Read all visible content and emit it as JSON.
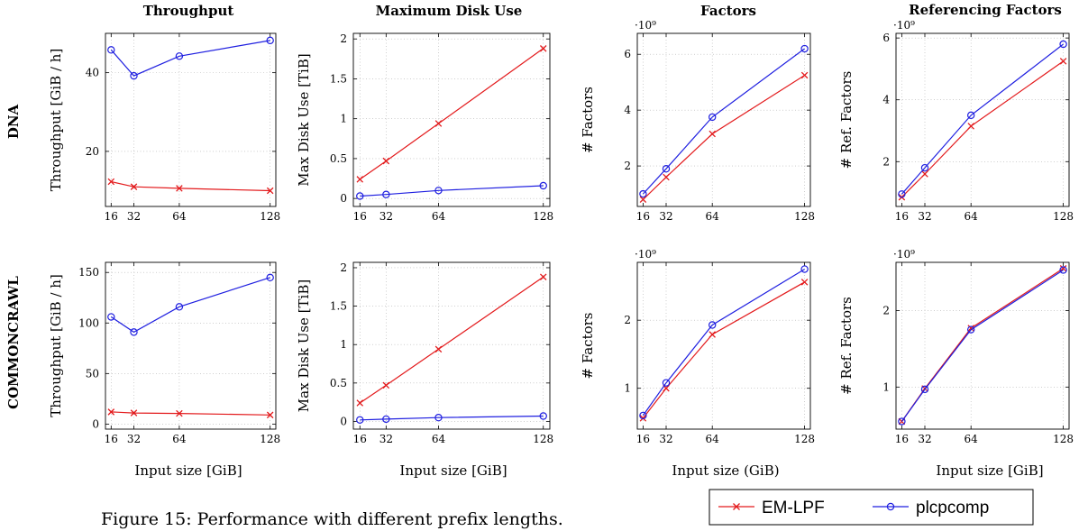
{
  "figure": {
    "caption": "Figure 15: Performance with different prefix lengths.",
    "row_labels": [
      "DNA",
      "COMMONCRAWL"
    ],
    "column_titles": [
      "Throughput",
      "Maximum Disk Use",
      "Factors",
      "Referencing Factors"
    ],
    "x_axis_labels": [
      "Input size [GiB]",
      "Input size [GiB]",
      "Input size (GiB)",
      "Input size [GiB]"
    ],
    "legend": [
      {
        "label": "EM-LPF",
        "color": "#e31a1c",
        "marker": "x"
      },
      {
        "label": "plcpcomp",
        "color": "#1f1fe0",
        "marker": "o"
      }
    ]
  },
  "chart_data": [
    {
      "id": "dna-throughput",
      "type": "line",
      "title": "Throughput",
      "ylabel": "Throughput [GiB / h]",
      "xlabel": "",
      "x": [
        16,
        32,
        64,
        128
      ],
      "xlim": [
        12,
        132
      ],
      "ylim": [
        6,
        50
      ],
      "yticks": [
        20,
        40
      ],
      "ytick_labels": [
        "20",
        "40"
      ],
      "exponent": "",
      "grid": true,
      "series": [
        {
          "name": "EM-LPF",
          "values": [
            12.3,
            11,
            10.6,
            10
          ]
        },
        {
          "name": "plcpcomp",
          "values": [
            45.8,
            39.2,
            44.2,
            48.2
          ]
        }
      ]
    },
    {
      "id": "dna-disk",
      "type": "line",
      "title": "Maximum Disk Use",
      "ylabel": "Max Disk Use [TiB]",
      "xlabel": "",
      "x": [
        16,
        32,
        64,
        128
      ],
      "xlim": [
        12,
        132
      ],
      "ylim": [
        -0.1,
        2.07
      ],
      "yticks": [
        0,
        0.5,
        1,
        1.5,
        2
      ],
      "ytick_labels": [
        "0",
        "0.5",
        "1",
        "1.5",
        "2"
      ],
      "exponent": "",
      "grid": true,
      "series": [
        {
          "name": "EM-LPF",
          "values": [
            0.24,
            0.47,
            0.94,
            1.88
          ]
        },
        {
          "name": "plcpcomp",
          "values": [
            0.03,
            0.05,
            0.1,
            0.16
          ]
        }
      ]
    },
    {
      "id": "dna-factors",
      "type": "line",
      "title": "Factors",
      "ylabel": "# Factors",
      "xlabel": "",
      "x": [
        16,
        32,
        64,
        128
      ],
      "xlim": [
        12,
        132
      ],
      "ylim": [
        0.55,
        6.75
      ],
      "yticks": [
        2,
        4,
        6
      ],
      "ytick_labels": [
        "2",
        "4",
        "6"
      ],
      "exponent": "·10⁹",
      "grid": true,
      "series": [
        {
          "name": "EM-LPF",
          "values": [
            0.8,
            1.6,
            3.15,
            5.25
          ]
        },
        {
          "name": "plcpcomp",
          "values": [
            1,
            1.9,
            3.75,
            6.2
          ]
        }
      ]
    },
    {
      "id": "dna-ref",
      "type": "line",
      "title": "Referencing Factors",
      "ylabel": "# Ref. Factors",
      "xlabel": "",
      "x": [
        16,
        32,
        64,
        128
      ],
      "xlim": [
        12,
        132
      ],
      "ylim": [
        0.55,
        6.15
      ],
      "yticks": [
        2,
        4,
        6
      ],
      "ytick_labels": [
        "2",
        "4",
        "6"
      ],
      "exponent": "·10⁹",
      "grid": true,
      "series": [
        {
          "name": "EM-LPF",
          "values": [
            0.85,
            1.6,
            3.15,
            5.25
          ]
        },
        {
          "name": "plcpcomp",
          "values": [
            0.95,
            1.8,
            3.5,
            5.8
          ]
        }
      ]
    },
    {
      "id": "cc-throughput",
      "type": "line",
      "title": "",
      "ylabel": "Throughput [GiB / h]",
      "xlabel": "Input size [GiB]",
      "x": [
        16,
        32,
        64,
        128
      ],
      "xlim": [
        12,
        132
      ],
      "ylim": [
        -5,
        160
      ],
      "yticks": [
        0,
        50,
        100,
        150
      ],
      "ytick_labels": [
        "0",
        "50",
        "100",
        "150"
      ],
      "exponent": "",
      "grid": true,
      "series": [
        {
          "name": "EM-LPF",
          "values": [
            12,
            11,
            10.5,
            9
          ]
        },
        {
          "name": "plcpcomp",
          "values": [
            106,
            91,
            116,
            145
          ]
        }
      ]
    },
    {
      "id": "cc-disk",
      "type": "line",
      "title": "",
      "ylabel": "Max Disk Use [TiB]",
      "xlabel": "Input size [GiB]",
      "x": [
        16,
        32,
        64,
        128
      ],
      "xlim": [
        12,
        132
      ],
      "ylim": [
        -0.1,
        2.07
      ],
      "yticks": [
        0,
        0.5,
        1,
        1.5,
        2
      ],
      "ytick_labels": [
        "0",
        "0.5",
        "1",
        "1.5",
        "2"
      ],
      "exponent": "",
      "grid": true,
      "series": [
        {
          "name": "EM-LPF",
          "values": [
            0.24,
            0.47,
            0.94,
            1.88
          ]
        },
        {
          "name": "plcpcomp",
          "values": [
            0.02,
            0.03,
            0.05,
            0.07
          ]
        }
      ]
    },
    {
      "id": "cc-factors",
      "type": "line",
      "title": "",
      "ylabel": "# Factors",
      "xlabel": "Input size (GiB)",
      "x": [
        16,
        32,
        64,
        128
      ],
      "xlim": [
        12,
        132
      ],
      "ylim": [
        0.4,
        2.85
      ],
      "yticks": [
        1,
        2
      ],
      "ytick_labels": [
        "1",
        "2"
      ],
      "exponent": "·10⁹",
      "grid": true,
      "series": [
        {
          "name": "EM-LPF",
          "values": [
            0.56,
            1.0,
            1.79,
            2.56
          ]
        },
        {
          "name": "plcpcomp",
          "values": [
            0.6,
            1.08,
            1.93,
            2.75
          ]
        }
      ]
    },
    {
      "id": "cc-ref",
      "type": "line",
      "title": "",
      "ylabel": "# Ref. Factors",
      "xlabel": "Input size [GiB]",
      "x": [
        16,
        32,
        64,
        128
      ],
      "xlim": [
        12,
        132
      ],
      "ylim": [
        0.45,
        2.63
      ],
      "yticks": [
        1,
        2
      ],
      "ytick_labels": [
        "1",
        "2"
      ],
      "exponent": "·10⁹",
      "grid": true,
      "series": [
        {
          "name": "EM-LPF",
          "values": [
            0.55,
            0.98,
            1.77,
            2.55
          ]
        },
        {
          "name": "plcpcomp",
          "values": [
            0.55,
            0.97,
            1.75,
            2.53
          ]
        }
      ]
    }
  ]
}
